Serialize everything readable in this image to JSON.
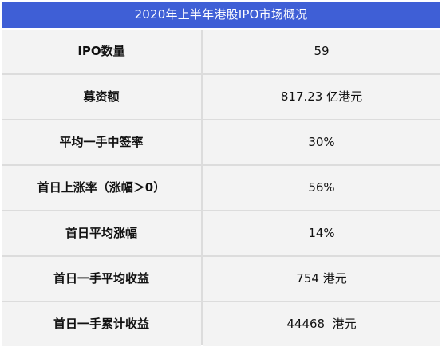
{
  "table": {
    "title": "2020年上半年港股IPO市场概况",
    "rows": [
      {
        "label": "IPO数量",
        "value": "59"
      },
      {
        "label": "募资额",
        "value": "817.23 亿港元"
      },
      {
        "label": "平均一手中签率",
        "value": "30%"
      },
      {
        "label": "首日上涨率（涨幅＞0）",
        "value": "56%"
      },
      {
        "label": "首日平均涨幅",
        "value": "14%"
      },
      {
        "label": "首日一手平均收益",
        "value": "754 港元"
      },
      {
        "label": "首日一手累计收益",
        "value": "44468  港元"
      }
    ]
  },
  "colors": {
    "header_bg": "#3f5fd6",
    "header_text": "#ffffff",
    "cell_bg": "#f3f3f3",
    "grid": "#dcdcdc"
  }
}
